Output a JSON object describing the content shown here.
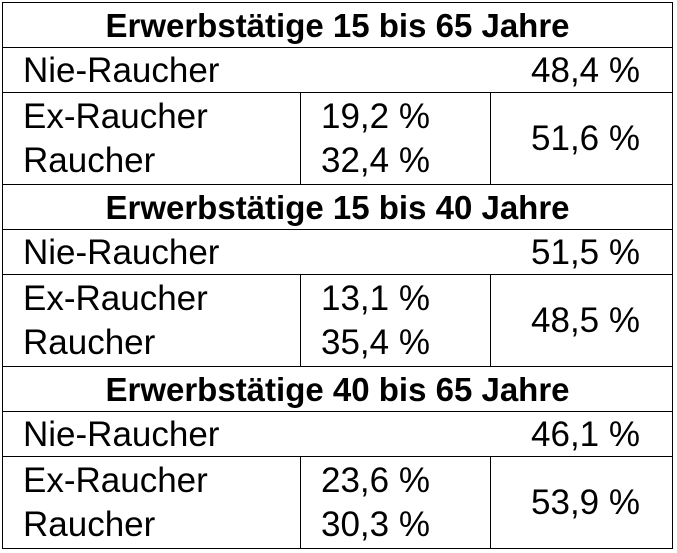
{
  "sections": [
    {
      "title": "Erwerbstätige 15 bis 65 Jahre",
      "nie_label": "Nie-Raucher",
      "nie_value": "48,4 %",
      "ex_label": "Ex-Raucher",
      "ex_value": "19,2 %",
      "raucher_label": "Raucher",
      "raucher_value": "32,4 %",
      "combined_value": "51,6 %"
    },
    {
      "title": "Erwerbstätige 15 bis 40 Jahre",
      "nie_label": "Nie-Raucher",
      "nie_value": "51,5 %",
      "ex_label": "Ex-Raucher",
      "ex_value": "13,1 %",
      "raucher_label": "Raucher",
      "raucher_value": "35,4 %",
      "combined_value": "48,5 %"
    },
    {
      "title": "Erwerbstätige 40 bis 65 Jahre",
      "nie_label": "Nie-Raucher",
      "nie_value": "46,1 %",
      "ex_label": "Ex-Raucher",
      "ex_value": "23,6 %",
      "raucher_label": "Raucher",
      "raucher_value": "30,3 %",
      "combined_value": "53,9 %"
    }
  ]
}
